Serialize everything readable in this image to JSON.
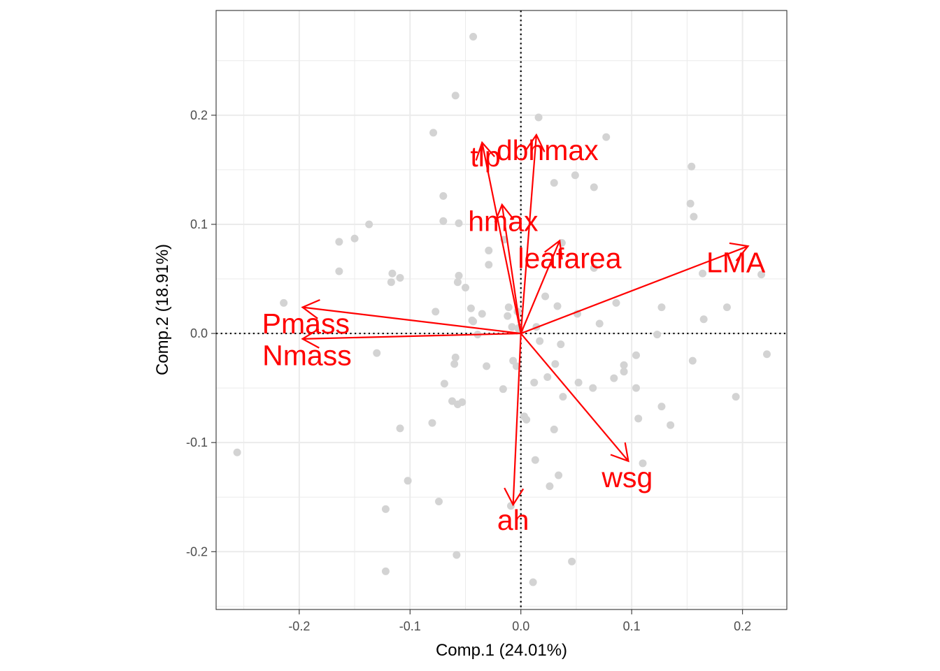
{
  "chart_data": {
    "type": "scatter",
    "subtype": "pca-biplot",
    "title": "",
    "xlabel": "Comp.1 (24.01%)",
    "ylabel": "Comp.2 (18.91%)",
    "xlim": [
      -0.275,
      0.24
    ],
    "ylim": [
      -0.253,
      0.296
    ],
    "x_ticks": [
      -0.2,
      -0.1,
      0.0,
      0.1,
      0.2
    ],
    "x_tick_labels": [
      "-0.2",
      "-0.1",
      "0.0",
      "0.1",
      "0.2"
    ],
    "y_ticks": [
      -0.2,
      -0.1,
      0.0,
      0.1,
      0.2
    ],
    "y_tick_labels": [
      "-0.2",
      "-0.1",
      "0.0",
      "0.1",
      "0.2"
    ],
    "grid": true,
    "reference_lines": {
      "x": 0,
      "y": 0,
      "style": "dotted"
    },
    "colors": {
      "points": "#d3d3d3",
      "loadings": "#ff0000",
      "grid": "#ebebeb",
      "panel_border": "#333333"
    },
    "scores": [
      [
        -0.043,
        0.272
      ],
      [
        -0.059,
        0.218
      ],
      [
        0.016,
        0.198
      ],
      [
        -0.079,
        0.184
      ],
      [
        0.077,
        0.18
      ],
      [
        0.154,
        0.153
      ],
      [
        0.049,
        0.145
      ],
      [
        0.03,
        0.138
      ],
      [
        0.066,
        0.134
      ],
      [
        -0.07,
        0.126
      ],
      [
        0.153,
        0.119
      ],
      [
        0.156,
        0.107
      ],
      [
        -0.07,
        0.103
      ],
      [
        -0.056,
        0.101
      ],
      [
        -0.137,
        0.1
      ],
      [
        -0.164,
        0.084
      ],
      [
        -0.15,
        0.087
      ],
      [
        -0.015,
        0.086
      ],
      [
        0.037,
        0.083
      ],
      [
        -0.029,
        0.076
      ],
      [
        -0.029,
        0.063
      ],
      [
        -0.164,
        0.057
      ],
      [
        -0.116,
        0.055
      ],
      [
        -0.056,
        0.053
      ],
      [
        -0.109,
        0.051
      ],
      [
        -0.117,
        0.047
      ],
      [
        -0.057,
        0.047
      ],
      [
        -0.05,
        0.042
      ],
      [
        0.066,
        0.06
      ],
      [
        0.164,
        0.055
      ],
      [
        0.217,
        0.054
      ],
      [
        0.022,
        0.034
      ],
      [
        -0.214,
        0.028
      ],
      [
        0.086,
        0.028
      ],
      [
        0.127,
        0.024
      ],
      [
        0.186,
        0.024
      ],
      [
        0.033,
        0.025
      ],
      [
        -0.011,
        0.024
      ],
      [
        -0.045,
        0.023
      ],
      [
        -0.035,
        0.018
      ],
      [
        -0.077,
        0.02
      ],
      [
        -0.003,
        0.02
      ],
      [
        -0.012,
        0.016
      ],
      [
        0.051,
        0.018
      ],
      [
        -0.043,
        0.011
      ],
      [
        -0.044,
        0.012
      ],
      [
        0.165,
        0.013
      ],
      [
        0.071,
        0.009
      ],
      [
        0.014,
        0.006
      ],
      [
        -0.008,
        0.006
      ],
      [
        -0.002,
        0.005
      ],
      [
        0.123,
        -0.001
      ],
      [
        -0.002,
        0.004
      ],
      [
        -0.001,
        0.003
      ],
      [
        0.036,
        -0.01
      ],
      [
        0.017,
        -0.007
      ],
      [
        -0.039,
        -0.001
      ],
      [
        -0.13,
        -0.018
      ],
      [
        0.222,
        -0.019
      ],
      [
        0.104,
        -0.02
      ],
      [
        -0.059,
        -0.022
      ],
      [
        -0.06,
        -0.028
      ],
      [
        -0.031,
        -0.03
      ],
      [
        -0.007,
        -0.025
      ],
      [
        0.155,
        -0.025
      ],
      [
        0.031,
        -0.028
      ],
      [
        0.093,
        -0.029
      ],
      [
        0.093,
        -0.035
      ],
      [
        -0.004,
        -0.03
      ],
      [
        0.024,
        -0.04
      ],
      [
        0.084,
        -0.041
      ],
      [
        0.012,
        -0.045
      ],
      [
        0.052,
        -0.045
      ],
      [
        -0.069,
        -0.046
      ],
      [
        0.065,
        -0.05
      ],
      [
        0.104,
        -0.05
      ],
      [
        -0.016,
        -0.051
      ],
      [
        0.038,
        -0.058
      ],
      [
        0.194,
        -0.058
      ],
      [
        -0.062,
        -0.062
      ],
      [
        -0.057,
        -0.065
      ],
      [
        -0.053,
        -0.063
      ],
      [
        0.127,
        -0.067
      ],
      [
        0.003,
        -0.076
      ],
      [
        0.005,
        -0.079
      ],
      [
        0.106,
        -0.078
      ],
      [
        -0.08,
        -0.082
      ],
      [
        -0.109,
        -0.087
      ],
      [
        0.135,
        -0.084
      ],
      [
        0.03,
        -0.088
      ],
      [
        0.013,
        -0.116
      ],
      [
        0.11,
        -0.119
      ],
      [
        -0.256,
        -0.109
      ],
      [
        0.034,
        -0.13
      ],
      [
        -0.102,
        -0.135
      ],
      [
        0.026,
        -0.14
      ],
      [
        -0.074,
        -0.154
      ],
      [
        -0.122,
        -0.161
      ],
      [
        -0.009,
        -0.158
      ],
      [
        -0.058,
        -0.203
      ],
      [
        0.046,
        -0.209
      ],
      [
        -0.122,
        -0.218
      ],
      [
        0.011,
        -0.228
      ]
    ],
    "loadings": [
      {
        "name": "tlp",
        "x": -0.035,
        "y": 0.175
      },
      {
        "name": "dbhmax",
        "x": 0.014,
        "y": 0.182
      },
      {
        "name": "hmax",
        "x": -0.017,
        "y": 0.118
      },
      {
        "name": "leafarea",
        "x": 0.035,
        "y": 0.085
      },
      {
        "name": "LMA",
        "x": 0.205,
        "y": 0.08
      },
      {
        "name": "Pmass",
        "x": -0.197,
        "y": 0.024
      },
      {
        "name": "Nmass",
        "x": -0.197,
        "y": -0.005
      },
      {
        "name": "wsg",
        "x": 0.097,
        "y": -0.117
      },
      {
        "name": "ah",
        "x": -0.007,
        "y": -0.157
      }
    ],
    "loading_labels": [
      {
        "text": "tlp",
        "x": -0.032,
        "y": 0.162
      },
      {
        "text": "dbhmax",
        "x": 0.024,
        "y": 0.168
      },
      {
        "text": "hmax",
        "x": -0.016,
        "y": 0.103
      },
      {
        "text": "leafarea",
        "x": 0.044,
        "y": 0.069
      },
      {
        "text": "LMA",
        "x": 0.194,
        "y": 0.065
      },
      {
        "text": "Pmass",
        "x": -0.194,
        "y": 0.009
      },
      {
        "text": "Nmass",
        "x": -0.193,
        "y": -0.02
      },
      {
        "text": "wsg",
        "x": 0.096,
        "y": -0.132
      },
      {
        "text": "ah",
        "x": -0.007,
        "y": -0.171
      }
    ]
  }
}
